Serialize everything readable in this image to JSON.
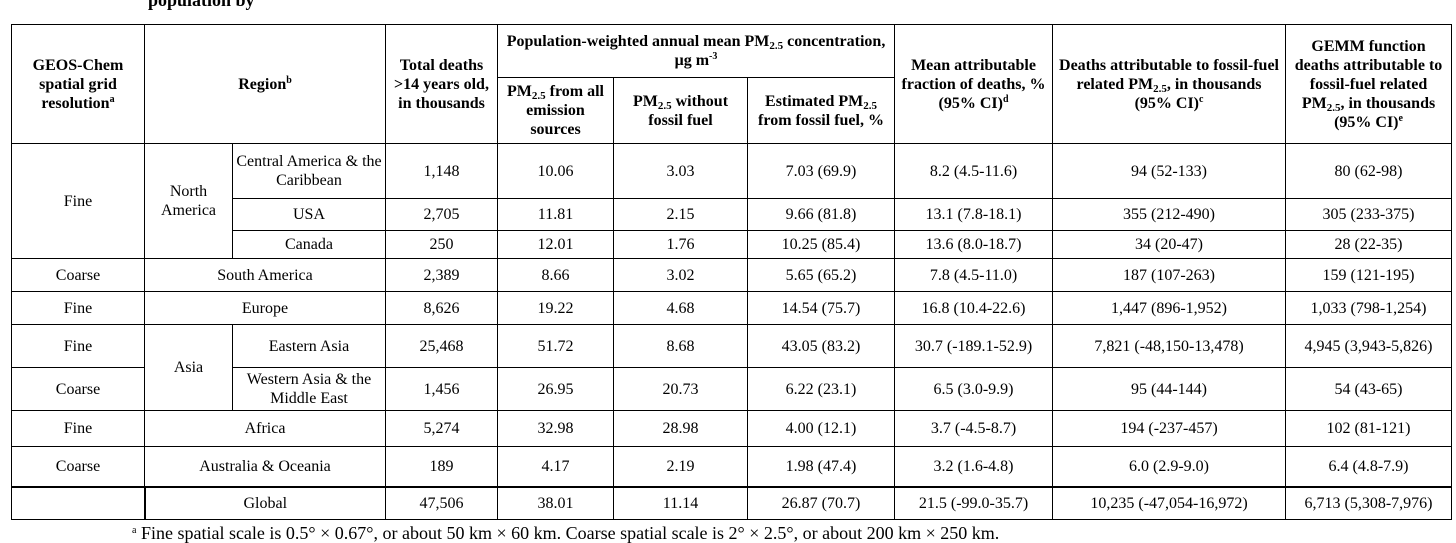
{
  "caption_fragment": "population by",
  "header": {
    "grid": {
      "main": "GEOS-Chem spatial grid resolution",
      "mark": "a"
    },
    "region": {
      "main": "Region",
      "mark": "b"
    },
    "total": "Total deaths >14 years old, in thousands",
    "pm_group": {
      "a": "Population-weighted annual mean PM",
      "sub": "2.5",
      "b": " concentration, μg m",
      "sup": "-3"
    },
    "pm_all": {
      "a": "PM",
      "sub": "2.5",
      "b": " from all emission sources"
    },
    "pm_without": {
      "a": "PM",
      "sub": "2.5",
      "b": " without fossil fuel"
    },
    "pm_est": {
      "a": "Estimated PM",
      "sub": "2.5",
      "b": " from fossil fuel, %"
    },
    "maf": {
      "main": "Mean attributable fraction of deaths, % (95% CI)",
      "mark": "d"
    },
    "deaths": {
      "a": "Deaths attributable to fossil-fuel related PM",
      "sub": "2.5",
      "b": ", in thousands (95% CI)",
      "mark": "c"
    },
    "gemm": {
      "a": "GEMM function deaths attributable to fossil-fuel related PM",
      "sub": "2.5",
      "b": ", in thousands (95% CI)",
      "mark": "e"
    }
  },
  "groups": {
    "north_america": "North America",
    "asia": "Asia"
  },
  "rows": {
    "central_america": {
      "grid": "Fine",
      "region": "Central America & the Caribbean",
      "total": "1,148",
      "pm_all": "10.06",
      "pm_without": "3.03",
      "pm_est": "7.03 (69.9)",
      "maf": "8.2 (4.5-11.6)",
      "deaths": "94 (52-133)",
      "gemm": "80 (62-98)"
    },
    "usa": {
      "region": "USA",
      "total": "2,705",
      "pm_all": "11.81",
      "pm_without": "2.15",
      "pm_est": "9.66 (81.8)",
      "maf": "13.1 (7.8-18.1)",
      "deaths": "355 (212-490)",
      "gemm": "305 (233-375)"
    },
    "canada": {
      "region": "Canada",
      "total": "250",
      "pm_all": "12.01",
      "pm_without": "1.76",
      "pm_est": "10.25 (85.4)",
      "maf": "13.6 (8.0-18.7)",
      "deaths": "34 (20-47)",
      "gemm": "28 (22-35)"
    },
    "south_america": {
      "grid": "Coarse",
      "region": "South America",
      "total": "2,389",
      "pm_all": "8.66",
      "pm_without": "3.02",
      "pm_est": "5.65 (65.2)",
      "maf": "7.8 (4.5-11.0)",
      "deaths": "187 (107-263)",
      "gemm": "159 (121-195)"
    },
    "europe": {
      "grid": "Fine",
      "region": "Europe",
      "total": "8,626",
      "pm_all": "19.22",
      "pm_without": "4.68",
      "pm_est": "14.54 (75.7)",
      "maf": "16.8 (10.4-22.6)",
      "deaths": "1,447 (896-1,952)",
      "gemm": "1,033 (798-1,254)"
    },
    "eastern_asia": {
      "grid": "Fine",
      "region": "Eastern Asia",
      "total": "25,468",
      "pm_all": "51.72",
      "pm_without": "8.68",
      "pm_est": "43.05 (83.2)",
      "maf": "30.7 (-189.1-52.9)",
      "deaths": "7,821 (-48,150-13,478)",
      "gemm": "4,945 (3,943-5,826)"
    },
    "western_asia": {
      "grid": "Coarse",
      "region": "Western Asia & the Middle East",
      "total": "1,456",
      "pm_all": "26.95",
      "pm_without": "20.73",
      "pm_est": "6.22 (23.1)",
      "maf": "6.5 (3.0-9.9)",
      "deaths": "95 (44-144)",
      "gemm": "54 (43-65)"
    },
    "africa": {
      "grid": "Fine",
      "region": "Africa",
      "total": "5,274",
      "pm_all": "32.98",
      "pm_without": "28.98",
      "pm_est": "4.00 (12.1)",
      "maf": "3.7 (-4.5-8.7)",
      "deaths": "194 (-237-457)",
      "gemm": "102 (81-121)"
    },
    "australia": {
      "grid": "Coarse",
      "region": "Australia & Oceania",
      "total": "189",
      "pm_all": "4.17",
      "pm_without": "2.19",
      "pm_est": "1.98 (47.4)",
      "maf": "3.2 (1.6-4.8)",
      "deaths": "6.0 (2.9-9.0)",
      "gemm": "6.4 (4.8-7.9)"
    },
    "global": {
      "region": "Global",
      "total": "47,506",
      "pm_all": "38.01",
      "pm_without": "11.14",
      "pm_est": "26.87 (70.7)",
      "maf": "21.5 (-99.0-35.7)",
      "deaths": "10,235 (-47,054-16,972)",
      "gemm": "6,713 (5,308-7,976)"
    }
  },
  "footnote": {
    "mark": "a",
    "text": " Fine spatial scale is 0.5° × 0.67°, or about 50 km × 60 km. Coarse spatial scale is 2° × 2.5°, or about 200 km × 250 km."
  }
}
